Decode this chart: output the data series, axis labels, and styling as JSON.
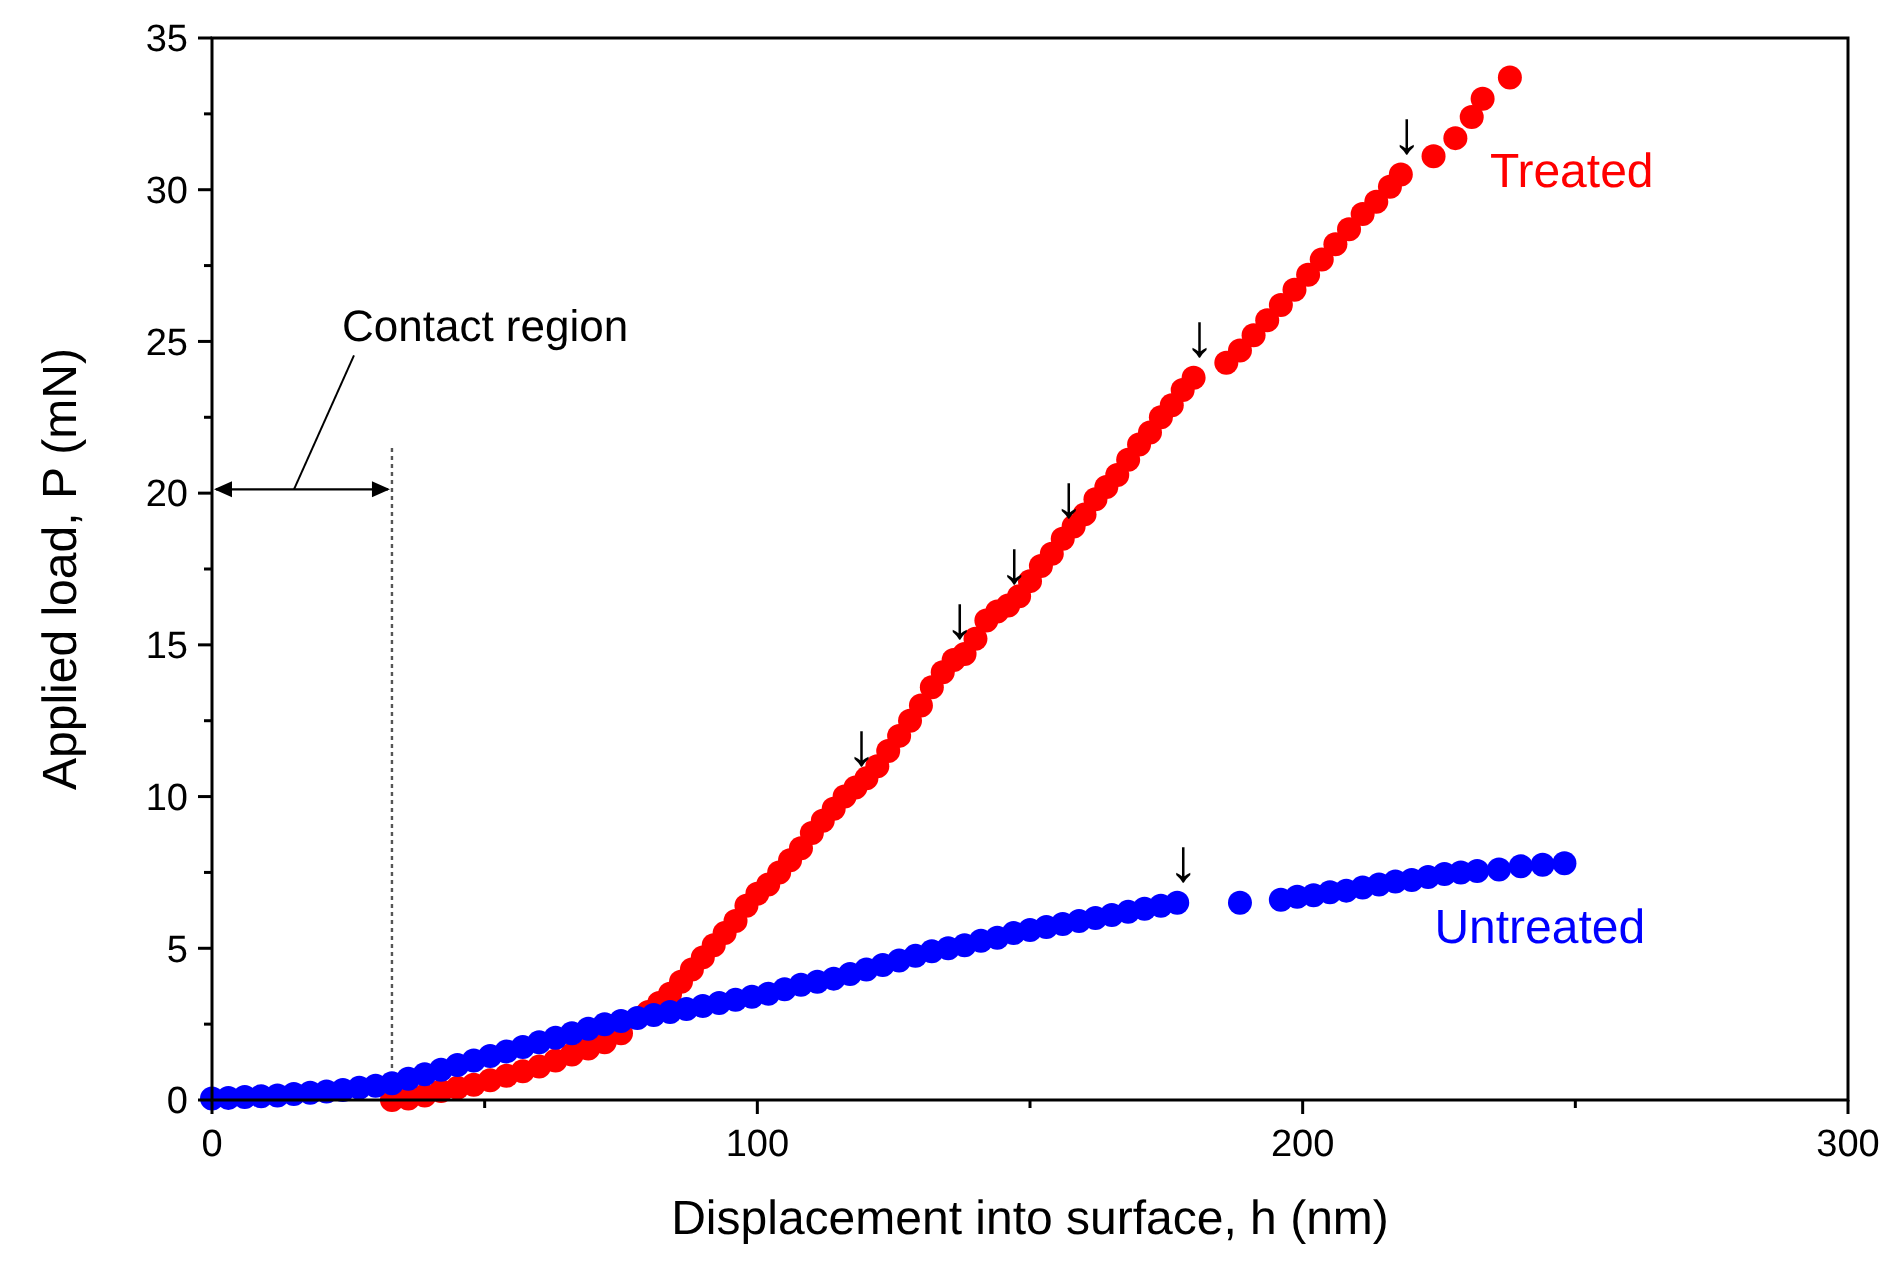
{
  "chart_data": {
    "type": "scatter",
    "xlabel": "Displacement into surface, h (nm)",
    "ylabel": "Applied load, P (mN)",
    "xlim": [
      0,
      300
    ],
    "xticks": [
      0,
      {
        "value": 50,
        "label": null
      },
      100,
      {
        "value": 150,
        "label": null
      },
      200,
      {
        "value": 250,
        "label": null
      },
      300
    ],
    "ylim": [
      0,
      35
    ],
    "yticks": [
      0,
      {
        "value": 2.5,
        "label": null
      },
      5,
      {
        "value": 7.5,
        "label": null
      },
      10,
      {
        "value": 12.5,
        "label": null
      },
      15,
      {
        "value": 17.5,
        "label": null
      },
      20,
      {
        "value": 22.5,
        "label": null
      },
      25,
      {
        "value": 27.5,
        "label": null
      },
      30,
      {
        "value": 32.5,
        "label": null
      },
      35
    ],
    "grid": false,
    "marker": "circle",
    "series": [
      {
        "name": "Treated",
        "color": "#ff0000",
        "x": [
          33,
          36,
          39,
          42,
          45,
          48,
          51,
          54,
          57,
          60,
          63,
          66,
          69,
          72,
          75,
          80,
          82,
          84,
          86,
          88,
          90,
          92,
          94,
          96,
          98,
          100,
          102,
          104,
          106,
          108,
          110,
          112,
          114,
          116,
          118,
          120,
          122,
          124,
          126,
          128,
          130,
          132,
          134,
          136,
          138,
          140,
          142,
          144,
          146,
          148,
          150,
          152,
          154,
          156,
          158,
          160,
          162,
          164,
          166,
          168,
          170,
          172,
          174,
          176,
          178,
          180,
          186,
          188.5,
          191,
          193.5,
          196,
          198.5,
          201,
          203.5,
          206,
          208.5,
          211,
          213.5,
          216,
          218,
          224,
          228,
          231,
          233,
          238
        ],
        "values": [
          0,
          0.05,
          0.15,
          0.3,
          0.4,
          0.5,
          0.65,
          0.8,
          0.95,
          1.1,
          1.3,
          1.5,
          1.7,
          1.9,
          2.2,
          2.9,
          3.2,
          3.5,
          3.9,
          4.3,
          4.7,
          5.1,
          5.5,
          5.9,
          6.4,
          6.8,
          7.1,
          7.5,
          7.9,
          8.3,
          8.8,
          9.2,
          9.6,
          10,
          10.3,
          10.6,
          11,
          11.5,
          12,
          12.5,
          13,
          13.6,
          14.1,
          14.5,
          14.7,
          15.2,
          15.8,
          16.1,
          16.3,
          16.6,
          17.1,
          17.6,
          18,
          18.5,
          18.9,
          19.3,
          19.8,
          20.2,
          20.6,
          21.1,
          21.6,
          22,
          22.5,
          22.9,
          23.4,
          23.8,
          24.3,
          24.7,
          25.2,
          25.7,
          26.2,
          26.7,
          27.2,
          27.7,
          28.2,
          28.7,
          29.2,
          29.6,
          30.1,
          30.5,
          31.1,
          31.7,
          32.4,
          33,
          33.7
        ]
      },
      {
        "name": "Untreated",
        "color": "#0000ff",
        "x": [
          0,
          3,
          6,
          9,
          12,
          15,
          18,
          21,
          24,
          27,
          30,
          33,
          36,
          39,
          42,
          45,
          48,
          51,
          54,
          57,
          60,
          63,
          66,
          69,
          72,
          75,
          78,
          81,
          84,
          87,
          90,
          93,
          96,
          99,
          102,
          105,
          108,
          111,
          114,
          117,
          120,
          123,
          126,
          129,
          132,
          135,
          138,
          141,
          144,
          147,
          150,
          153,
          156,
          159,
          162,
          165,
          168,
          171,
          174,
          177,
          188.5,
          196,
          199,
          202,
          205,
          208,
          211,
          214,
          217,
          220,
          223,
          226,
          229,
          232,
          236,
          240,
          244,
          248
        ],
        "values": [
          0.05,
          0.07,
          0.1,
          0.12,
          0.15,
          0.2,
          0.24,
          0.28,
          0.33,
          0.4,
          0.47,
          0.55,
          0.7,
          0.85,
          1,
          1.15,
          1.3,
          1.45,
          1.6,
          1.75,
          1.9,
          2.05,
          2.2,
          2.35,
          2.5,
          2.6,
          2.7,
          2.8,
          2.9,
          3,
          3.1,
          3.2,
          3.3,
          3.4,
          3.5,
          3.65,
          3.8,
          3.9,
          4,
          4.15,
          4.3,
          4.45,
          4.6,
          4.75,
          4.9,
          5,
          5.1,
          5.25,
          5.35,
          5.5,
          5.6,
          5.7,
          5.8,
          5.9,
          6,
          6.1,
          6.2,
          6.3,
          6.4,
          6.5,
          6.5,
          6.6,
          6.7,
          6.75,
          6.85,
          6.9,
          7,
          7.1,
          7.2,
          7.25,
          7.35,
          7.45,
          7.5,
          7.55,
          7.6,
          7.7,
          7.75,
          7.8
        ]
      }
    ],
    "ref_lines": [
      {
        "axis": "x",
        "value": 33,
        "label": "Contact region",
        "line_style": "dotted",
        "color": "#555555"
      }
    ],
    "annotations": [
      {
        "text": "↓",
        "x": 118,
        "y": 10.3
      },
      {
        "text": "↓",
        "x": 136,
        "y": 14.5
      },
      {
        "text": "↓",
        "x": 146,
        "y": 16.3
      },
      {
        "text": "↓",
        "x": 156,
        "y": 18.5
      },
      {
        "text": "↓",
        "x": 180,
        "y": 23.8
      },
      {
        "text": "↓",
        "x": 218,
        "y": 30.5
      },
      {
        "text": "↓",
        "x": 177,
        "y": 6.5
      }
    ]
  }
}
